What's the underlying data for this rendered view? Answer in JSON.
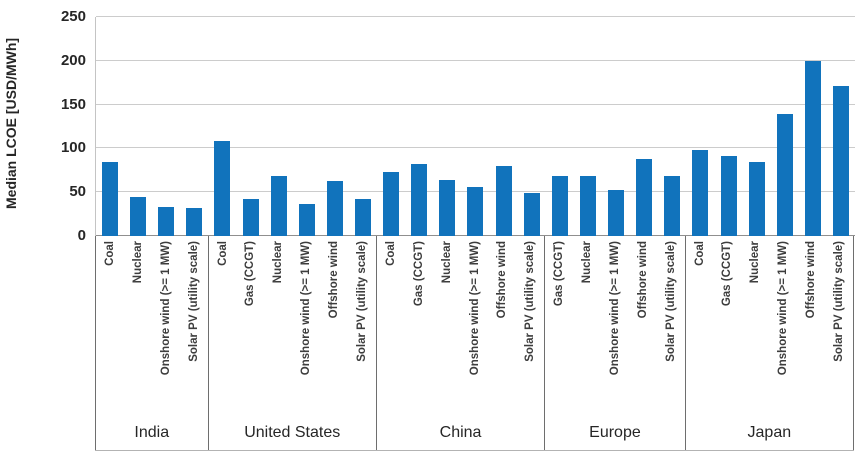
{
  "chart_data": {
    "type": "bar",
    "title": "",
    "ylabel": "Median LCOE [USD/MWh]",
    "xlabel": "",
    "ylim": [
      0,
      250
    ],
    "yticks": [
      0,
      50,
      100,
      150,
      200,
      250
    ],
    "grid": "horizontal",
    "legend": "none",
    "bar_color": "#1173bc",
    "groups": [
      {
        "country": "India",
        "bars": [
          {
            "label": "Coal",
            "value": 84
          },
          {
            "label": "Nuclear",
            "value": 45
          },
          {
            "label": "Onshore wind (>= 1 MW)",
            "value": 33
          },
          {
            "label": "Solar PV (utility scale)",
            "value": 32
          }
        ]
      },
      {
        "country": "United States",
        "bars": [
          {
            "label": "Coal",
            "value": 108
          },
          {
            "label": "Gas (CCGT)",
            "value": 42
          },
          {
            "label": "Nuclear",
            "value": 69
          },
          {
            "label": "Onshore wind (>= 1 MW)",
            "value": 36
          },
          {
            "label": "Offshore wind",
            "value": 63
          },
          {
            "label": "Solar PV (utility scale)",
            "value": 42
          }
        ]
      },
      {
        "country": "China",
        "bars": [
          {
            "label": "Coal",
            "value": 73
          },
          {
            "label": "Gas (CCGT)",
            "value": 82
          },
          {
            "label": "Nuclear",
            "value": 64
          },
          {
            "label": "Onshore wind (>= 1 MW)",
            "value": 56
          },
          {
            "label": "Offshore wind",
            "value": 80
          },
          {
            "label": "Solar PV (utility scale)",
            "value": 49
          }
        ]
      },
      {
        "country": "Europe",
        "bars": [
          {
            "label": "Gas (CCGT)",
            "value": 69
          },
          {
            "label": "Nuclear",
            "value": 68
          },
          {
            "label": "Onshore wind (>= 1 MW)",
            "value": 52
          },
          {
            "label": "Offshore wind",
            "value": 88
          },
          {
            "label": "Solar PV (utility scale)",
            "value": 68
          }
        ]
      },
      {
        "country": "Japan",
        "bars": [
          {
            "label": "Coal",
            "value": 98
          },
          {
            "label": "Gas (CCGT)",
            "value": 91
          },
          {
            "label": "Nuclear",
            "value": 85
          },
          {
            "label": "Onshore wind (>= 1 MW)",
            "value": 139
          },
          {
            "label": "Offshore wind",
            "value": 200
          },
          {
            "label": "Solar PV (utility scale)",
            "value": 171
          }
        ]
      }
    ]
  }
}
